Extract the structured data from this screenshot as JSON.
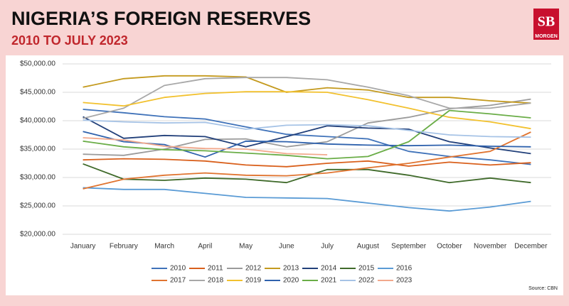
{
  "chart_data": {
    "type": "line",
    "title": "NIGERIA’S FOREIGN RESERVES",
    "subtitle": "2010 TO JULY 2023",
    "logo": {
      "mark": "SB",
      "text": "MORGEN"
    },
    "source": "Source: CBN",
    "categories": [
      "January",
      "February",
      "March",
      "April",
      "May",
      "June",
      "July",
      "August",
      "September",
      "October",
      "November",
      "December"
    ],
    "ylim": [
      20000,
      50000
    ],
    "yticks": [
      {
        "value": 20000,
        "label": "$20,000.00"
      },
      {
        "value": 25000,
        "label": "$25,000.00"
      },
      {
        "value": 30000,
        "label": "$30,000.00"
      },
      {
        "value": 35000,
        "label": "$35,000.00"
      },
      {
        "value": 40000,
        "label": "$40,000.00"
      },
      {
        "value": 45000,
        "label": "$45,000.00"
      },
      {
        "value": 50000,
        "label": "$50,000.00"
      }
    ],
    "grid": true,
    "legend": "bottom",
    "series": [
      {
        "name": "2010",
        "color": "#3f72b9",
        "values": [
          42000,
          41400,
          40700,
          40300,
          38900,
          37600,
          37200,
          36800,
          34600,
          33700,
          33100,
          32300
        ]
      },
      {
        "name": "2011",
        "color": "#d9601c",
        "values": [
          33100,
          33300,
          33200,
          32900,
          32200,
          31900,
          32500,
          32900,
          32000,
          32700,
          32200,
          32600
        ]
      },
      {
        "name": "2012",
        "color": "#9b9b9b",
        "values": [
          34100,
          33900,
          35000,
          36700,
          36800,
          35400,
          36300,
          39600,
          40600,
          42100,
          42700,
          43800
        ]
      },
      {
        "name": "2013",
        "color": "#c49a1e",
        "values": [
          45900,
          47400,
          47900,
          47900,
          47700,
          45000,
          45800,
          45400,
          44100,
          44100,
          43500,
          43100
        ]
      },
      {
        "name": "2014",
        "color": "#22407a",
        "values": [
          40700,
          36900,
          37400,
          37200,
          35400,
          37200,
          39100,
          38700,
          38500,
          36300,
          35200,
          34200
        ]
      },
      {
        "name": "2015",
        "color": "#3f6a2a",
        "values": [
          32400,
          29700,
          29500,
          29900,
          29700,
          29100,
          31400,
          31400,
          30400,
          29100,
          29900,
          29100
        ]
      },
      {
        "name": "2016",
        "color": "#5a9bd5",
        "values": [
          28200,
          27900,
          27900,
          27200,
          26500,
          26400,
          26300,
          25500,
          24700,
          24100,
          24800,
          25800
        ]
      },
      {
        "name": "2017",
        "color": "#e07430",
        "values": [
          28000,
          29700,
          30400,
          30800,
          30400,
          30300,
          30800,
          31700,
          32500,
          33600,
          34600,
          38000
        ]
      },
      {
        "name": "2018",
        "color": "#a8a8a8",
        "values": [
          40400,
          42200,
          46200,
          47400,
          47600,
          47600,
          47200,
          45900,
          44400,
          42200,
          42200,
          43100
        ]
      },
      {
        "name": "2019",
        "color": "#f2c12e",
        "values": [
          43200,
          42600,
          44100,
          44800,
          45100,
          45100,
          45000,
          43700,
          42200,
          40600,
          39800,
          38600
        ]
      },
      {
        "name": "2020",
        "color": "#2f62ad",
        "values": [
          38100,
          36300,
          35800,
          33600,
          36400,
          36300,
          35900,
          35700,
          35600,
          35700,
          35500,
          35400
        ]
      },
      {
        "name": "2021",
        "color": "#6aad47",
        "values": [
          36400,
          35400,
          34900,
          34700,
          34300,
          33900,
          33300,
          33700,
          36300,
          41800,
          41200,
          40500
        ]
      },
      {
        "name": "2022",
        "color": "#a6c3e6",
        "values": [
          40100,
          39800,
          39600,
          39700,
          38500,
          39200,
          39300,
          39100,
          38300,
          37500,
          37200,
          37100
        ]
      },
      {
        "name": "2023",
        "color": "#f2a98c",
        "values": [
          37000,
          36600,
          35500,
          35100,
          35000,
          34200,
          34000,
          null,
          null,
          null,
          null,
          null
        ]
      }
    ]
  }
}
